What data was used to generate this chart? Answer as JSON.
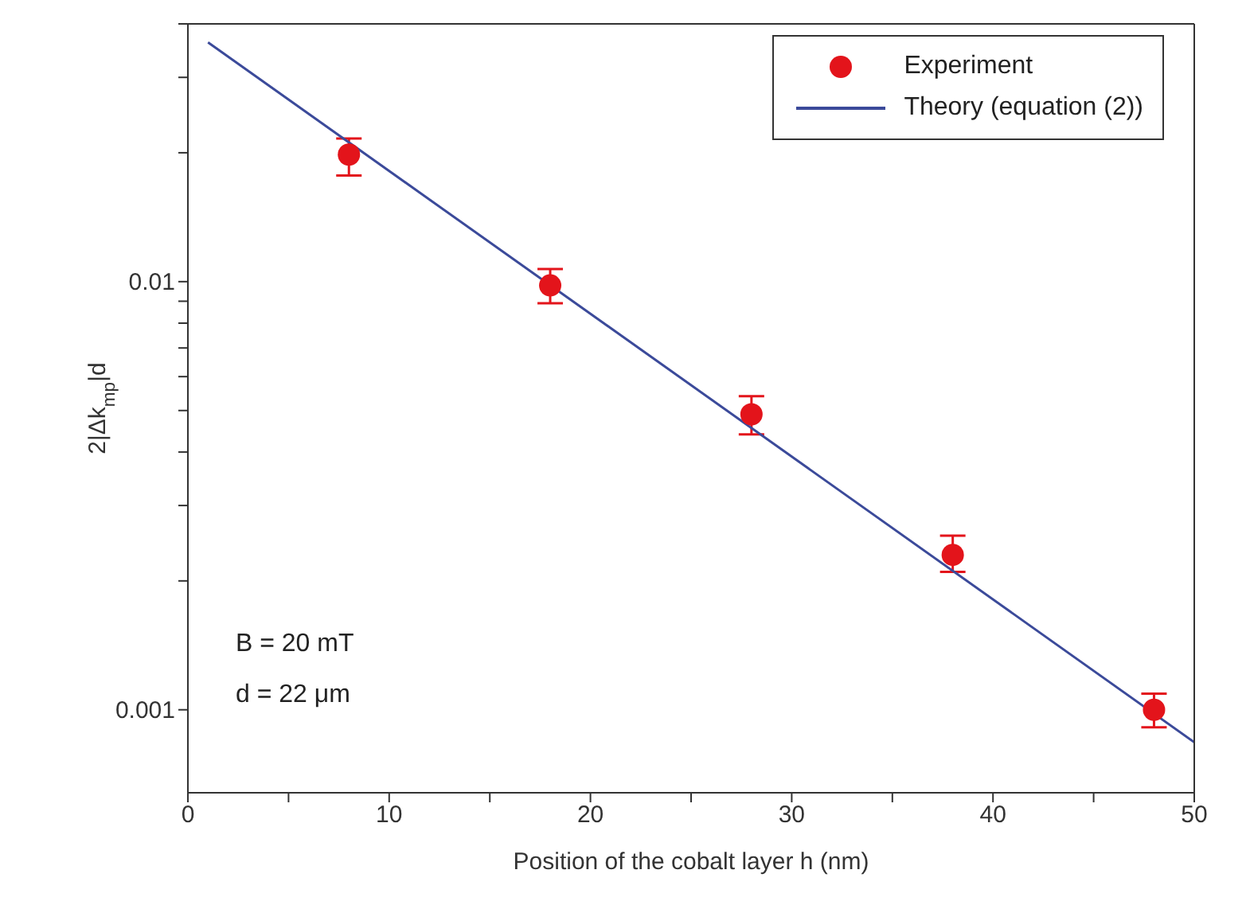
{
  "chart_data": {
    "type": "scatter",
    "xlabel": "Position of the cobalt layer h (nm)",
    "ylabel": "2|Δk$_{mp}$|d",
    "log": "y",
    "xlim": [
      0,
      50
    ],
    "ylim": [
      0.00064,
      0.04
    ],
    "xticks": [
      0,
      {
        "value": 5,
        "label": null
      },
      10,
      {
        "value": 15,
        "label": null
      },
      20,
      {
        "value": 25,
        "label": null
      },
      30,
      {
        "value": 35,
        "label": null
      },
      40,
      {
        "value": 45,
        "label": null
      },
      50
    ],
    "yticks": [
      0.001,
      {
        "value": 0.002,
        "label": null
      },
      {
        "value": 0.003,
        "label": null
      },
      {
        "value": 0.004,
        "label": null
      },
      {
        "value": 0.005,
        "label": null
      },
      {
        "value": 0.006,
        "label": null
      },
      {
        "value": 0.007,
        "label": null
      },
      {
        "value": 0.008,
        "label": null
      },
      {
        "value": 0.009,
        "label": null
      },
      0.01,
      {
        "value": 0.02,
        "label": null
      },
      {
        "value": 0.03,
        "label": null
      },
      {
        "value": 0.04,
        "label": null
      }
    ],
    "grid": false,
    "legend": "top right",
    "series": [
      {
        "name": "Experiment",
        "marker": "circle",
        "color": "#e3141b",
        "x": [
          8,
          18,
          28,
          38,
          48
        ],
        "values": [
          0.0198,
          0.0098,
          0.0049,
          0.0023,
          0.001
        ],
        "errors": [
          [
            0.0177,
            0.0216
          ],
          [
            0.0089,
            0.0107
          ],
          [
            0.0044,
            0.0054
          ],
          [
            0.0021,
            0.00255
          ],
          [
            0.00091,
            0.00109
          ]
        ]
      },
      {
        "name": "Theory (equation (2))",
        "type": "line",
        "color": "#3b4a9a",
        "x": [
          1,
          50
        ],
        "values": [
          0.0362,
          0.00084
        ]
      }
    ],
    "annotations": [
      "B = 20 mT",
      "d = 22 μm"
    ]
  }
}
